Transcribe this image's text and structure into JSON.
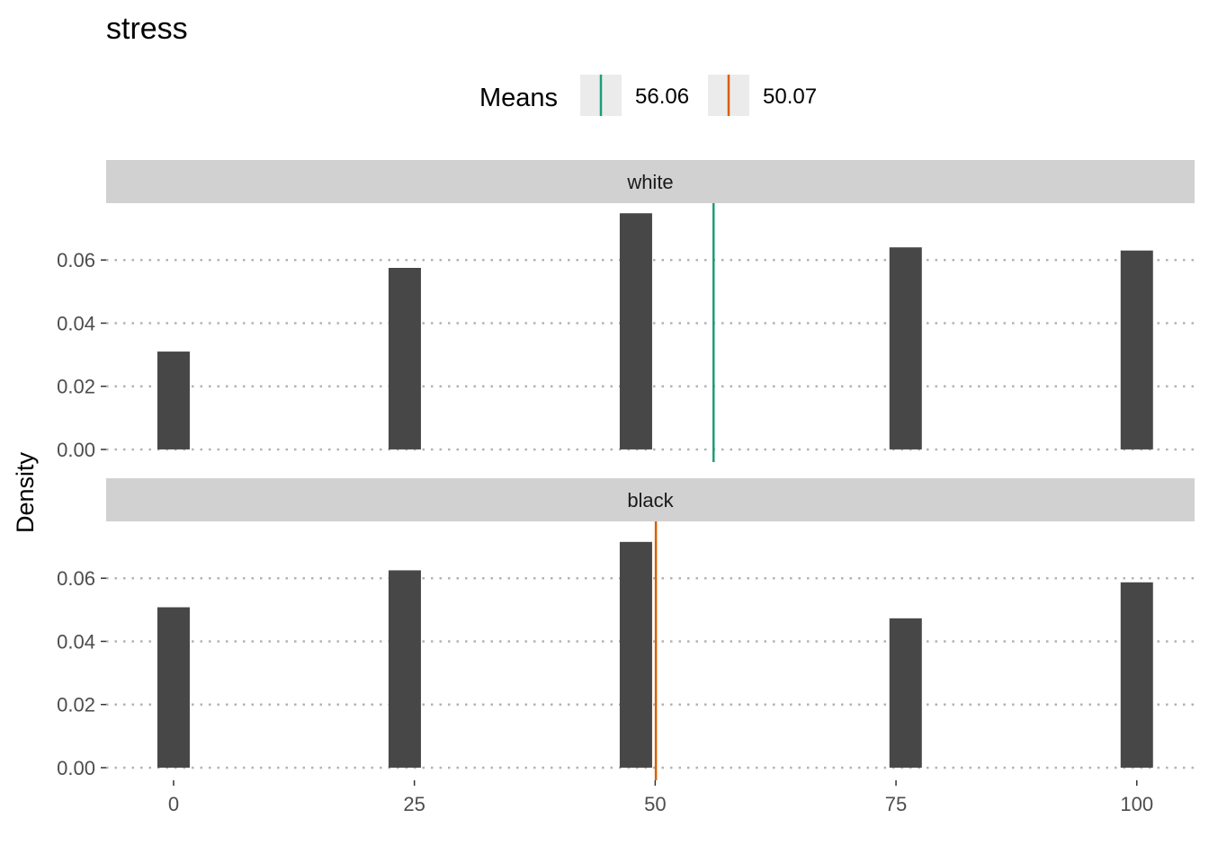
{
  "chart_data": {
    "type": "bar",
    "title": "stress",
    "xlabel": "",
    "ylabel": "Density",
    "xlim": [
      -7,
      106
    ],
    "ylim": [
      -0.004,
      0.078
    ],
    "x_ticks": [
      0,
      25,
      50,
      75,
      100
    ],
    "y_ticks": [
      0.0,
      0.02,
      0.04,
      0.06
    ],
    "y_tick_labels": [
      "0.00",
      "0.02",
      "0.04",
      "0.06"
    ],
    "grid": "horizontal dotted",
    "bar_color": "#474747",
    "legend": {
      "title": "Means",
      "placement": "top",
      "entries": [
        {
          "label": "56.06",
          "value": 56.06,
          "color": "#1B9E77"
        },
        {
          "label": "50.07",
          "value": 50.07,
          "color": "#D95F02"
        }
      ]
    },
    "panels": [
      {
        "name": "white",
        "mean": 56.06,
        "mean_color": "#1B9E77",
        "x": [
          0,
          24,
          48,
          76,
          100
        ],
        "values": [
          0.031,
          0.0575,
          0.0748,
          0.064,
          0.063
        ]
      },
      {
        "name": "black",
        "mean": 50.07,
        "mean_color": "#D95F02",
        "x": [
          0,
          24,
          48,
          76,
          100
        ],
        "values": [
          0.0508,
          0.0625,
          0.0715,
          0.0473,
          0.0587
        ]
      }
    ]
  }
}
